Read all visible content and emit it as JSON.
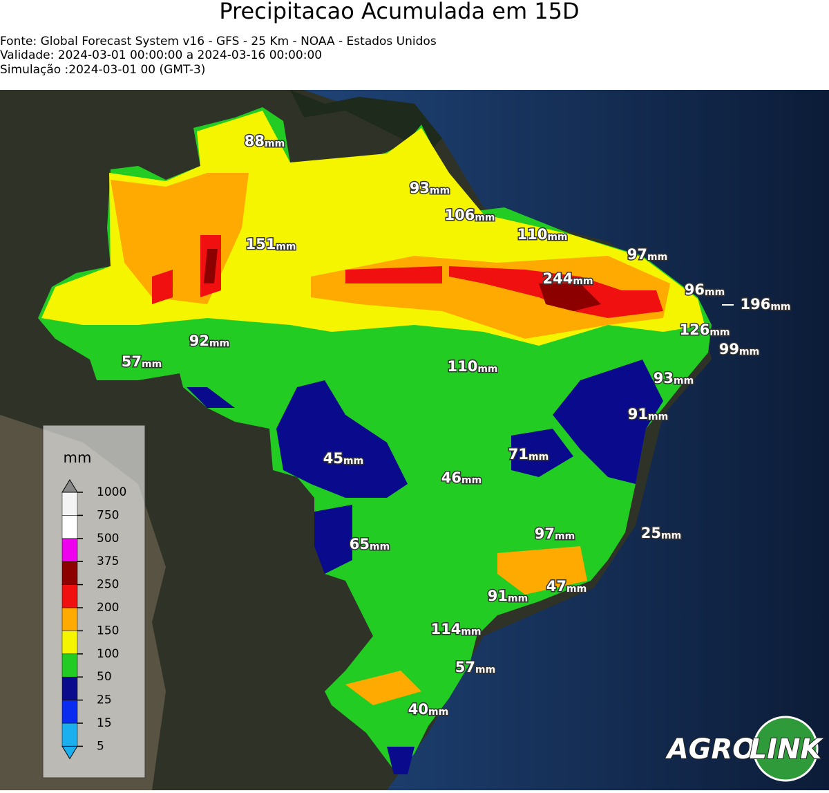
{
  "header": {
    "title": "Precipitacao Acumulada em 15D",
    "lines": [
      "Fonte: Global Forecast System v16 - GFS - 25 Km - NOAA - Estados Unidos",
      "Validade: 2024-03-01 00:00:00 a 2024-03-16 00:00:00",
      "Simulação :2024-03-01 00 (GMT-3)"
    ]
  },
  "labels": [
    {
      "value": "88",
      "unit": "mm"
    },
    {
      "value": "93",
      "unit": "mm"
    },
    {
      "value": "106",
      "unit": "mm"
    },
    {
      "value": "110",
      "unit": "mm"
    },
    {
      "value": "151",
      "unit": "mm"
    },
    {
      "value": "97",
      "unit": "mm"
    },
    {
      "value": "244",
      "unit": "mm"
    },
    {
      "value": "96",
      "unit": "mm"
    },
    {
      "value": "196",
      "unit": "mm"
    },
    {
      "value": "126",
      "unit": "mm"
    },
    {
      "value": "99",
      "unit": "mm"
    },
    {
      "value": "92",
      "unit": "mm"
    },
    {
      "value": "57",
      "unit": "mm"
    },
    {
      "value": "110",
      "unit": "mm"
    },
    {
      "value": "93",
      "unit": "mm"
    },
    {
      "value": "91",
      "unit": "mm"
    },
    {
      "value": "45",
      "unit": "mm"
    },
    {
      "value": "71",
      "unit": "mm"
    },
    {
      "value": "46",
      "unit": "mm"
    },
    {
      "value": "65",
      "unit": "mm"
    },
    {
      "value": "97",
      "unit": "mm"
    },
    {
      "value": "25",
      "unit": "mm"
    },
    {
      "value": "91",
      "unit": "mm"
    },
    {
      "value": "47",
      "unit": "mm"
    },
    {
      "value": "114",
      "unit": "mm"
    },
    {
      "value": "57",
      "unit": "mm"
    },
    {
      "value": "40",
      "unit": "mm"
    }
  ],
  "colorbar": {
    "title": "mm",
    "ticks": [
      5,
      15,
      25,
      50,
      100,
      150,
      200,
      250,
      375,
      500,
      750,
      1000
    ],
    "colors": [
      "#1ab0f0",
      "#0a2cf0",
      "#0a0a8c",
      "#22cc22",
      "#f5f500",
      "#ffaa00",
      "#f01010",
      "#8c0000",
      "#ee00ee",
      "#ffffff",
      "#f4f4f4"
    ],
    "under": "#1ab0f0",
    "over": "#888888"
  },
  "logo": [
    "AGRO",
    "LINK"
  ]
}
